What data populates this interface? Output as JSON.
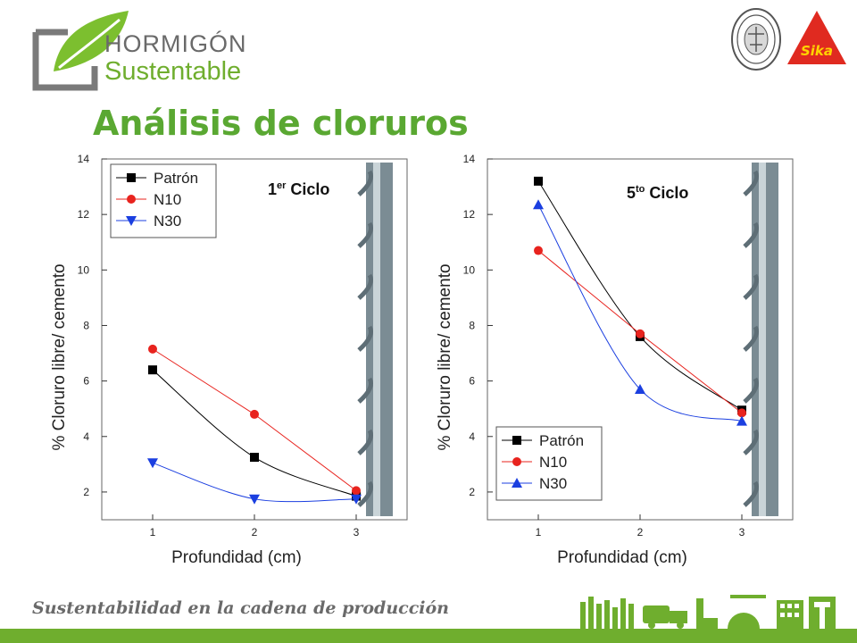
{
  "brand": {
    "line1": "HORMIGÓN",
    "line2": "Sustentable",
    "partner_logo_text": "Sika"
  },
  "slide": {
    "title": "Análisis de cloruros",
    "footer": "Sustentabilidad en la cadena de producción"
  },
  "colors": {
    "Patrón": "#000000",
    "N10": "#e8231e",
    "N30": "#1b3fe0",
    "accent": "#5aa832"
  },
  "chart_data": [
    {
      "type": "line",
      "annotation": "1er Ciclo",
      "annotation_base": "1",
      "annotation_sup": "er",
      "annotation_rest": " Ciclo",
      "xlabel": "Profundidad (cm)",
      "ylabel": "% Cloruro libre/ cemento",
      "x": [
        1,
        2,
        3
      ],
      "xlim": [
        0.5,
        3.5
      ],
      "ylim": [
        1,
        14
      ],
      "yticks": [
        2,
        4,
        6,
        8,
        10,
        12,
        14
      ],
      "xticks": [
        1,
        2,
        3
      ],
      "legend_position": "top-left",
      "series": [
        {
          "name": "Patrón",
          "values": [
            6.4,
            3.25,
            1.85
          ],
          "marker": "square"
        },
        {
          "name": "N10",
          "values": [
            7.15,
            4.8,
            2.05
          ],
          "marker": "circle"
        },
        {
          "name": "N30",
          "values": [
            3.05,
            1.75,
            1.75
          ],
          "marker": "triangle-down"
        }
      ]
    },
    {
      "type": "line",
      "annotation": "5to Ciclo",
      "annotation_base": "5",
      "annotation_sup": "to",
      "annotation_rest": " Ciclo",
      "xlabel": "Profundidad (cm)",
      "ylabel": "% Cloruro libre/ cemento",
      "x": [
        1,
        2,
        3
      ],
      "xlim": [
        0.5,
        3.5
      ],
      "ylim": [
        1,
        14
      ],
      "yticks": [
        2,
        4,
        6,
        8,
        10,
        12,
        14
      ],
      "xticks": [
        1,
        2,
        3
      ],
      "legend_position": "bottom-left",
      "series": [
        {
          "name": "Patrón",
          "values": [
            13.2,
            7.6,
            4.95
          ],
          "marker": "square"
        },
        {
          "name": "N10",
          "values": [
            10.7,
            7.7,
            4.85
          ],
          "marker": "circle"
        },
        {
          "name": "N30",
          "values": [
            12.35,
            5.7,
            4.55
          ],
          "marker": "triangle-up"
        }
      ]
    }
  ]
}
